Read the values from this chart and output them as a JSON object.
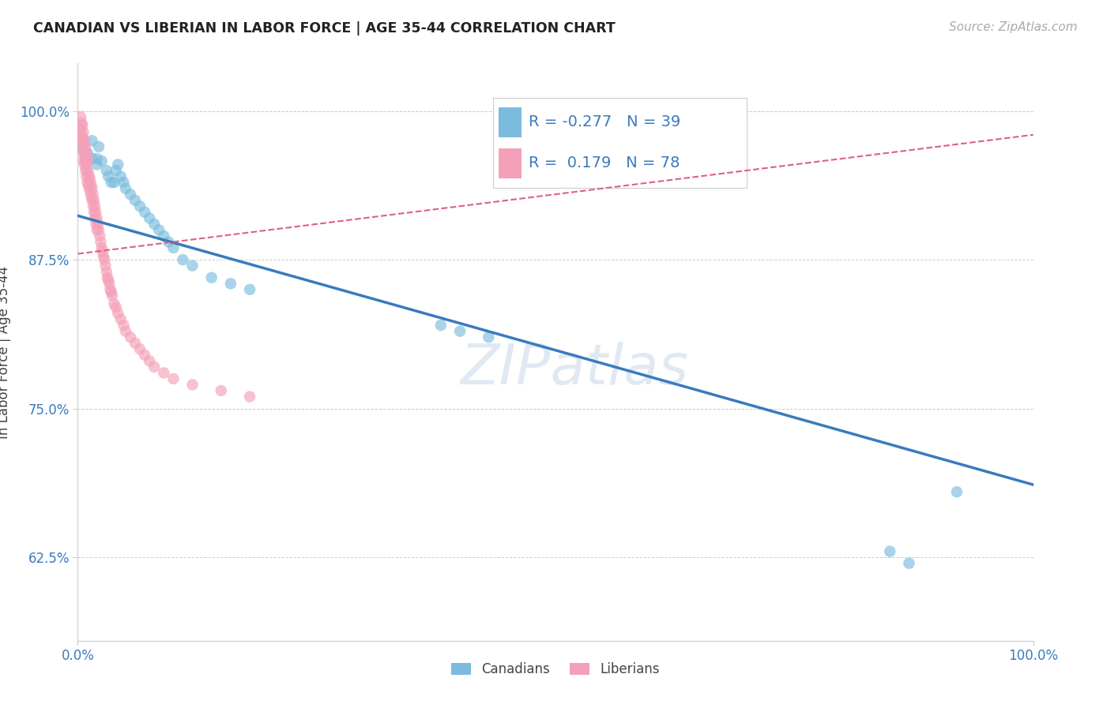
{
  "title": "CANADIAN VS LIBERIAN IN LABOR FORCE | AGE 35-44 CORRELATION CHART",
  "source_text": "Source: ZipAtlas.com",
  "ylabel": "In Labor Force | Age 35-44",
  "xlim": [
    0.0,
    1.0
  ],
  "ylim": [
    0.555,
    1.04
  ],
  "yticks": [
    0.625,
    0.75,
    0.875,
    1.0
  ],
  "ytick_labels": [
    "62.5%",
    "75.0%",
    "87.5%",
    "100.0%"
  ],
  "xticks": [
    0.0,
    1.0
  ],
  "xtick_labels": [
    "0.0%",
    "100.0%"
  ],
  "R_canadian": -0.277,
  "N_canadian": 39,
  "R_liberian": 0.179,
  "N_liberian": 78,
  "canadian_color": "#7bbcde",
  "liberian_color": "#f4a0b8",
  "canadian_line_color": "#3a7abf",
  "liberian_line_color": "#e06080",
  "background_color": "#ffffff",
  "canadians_x": [
    0.005,
    0.008,
    0.01,
    0.015,
    0.015,
    0.02,
    0.02,
    0.022,
    0.025,
    0.03,
    0.032,
    0.035,
    0.038,
    0.04,
    0.042,
    0.045,
    0.048,
    0.05,
    0.055,
    0.06,
    0.065,
    0.07,
    0.075,
    0.08,
    0.085,
    0.09,
    0.095,
    0.1,
    0.11,
    0.12,
    0.14,
    0.16,
    0.18,
    0.38,
    0.4,
    0.43,
    0.85,
    0.87,
    0.92
  ],
  "canadians_y": [
    0.97,
    0.96,
    0.965,
    0.975,
    0.96,
    0.96,
    0.955,
    0.97,
    0.958,
    0.95,
    0.945,
    0.94,
    0.94,
    0.95,
    0.955,
    0.945,
    0.94,
    0.935,
    0.93,
    0.925,
    0.92,
    0.915,
    0.91,
    0.905,
    0.9,
    0.895,
    0.89,
    0.885,
    0.875,
    0.87,
    0.86,
    0.855,
    0.85,
    0.82,
    0.815,
    0.81,
    0.63,
    0.62,
    0.68
  ],
  "liberians_x": [
    0.003,
    0.003,
    0.004,
    0.004,
    0.005,
    0.005,
    0.005,
    0.005,
    0.006,
    0.006,
    0.006,
    0.006,
    0.007,
    0.007,
    0.007,
    0.008,
    0.008,
    0.008,
    0.009,
    0.009,
    0.009,
    0.01,
    0.01,
    0.01,
    0.01,
    0.011,
    0.011,
    0.012,
    0.012,
    0.013,
    0.013,
    0.014,
    0.014,
    0.015,
    0.015,
    0.016,
    0.016,
    0.017,
    0.017,
    0.018,
    0.018,
    0.019,
    0.019,
    0.02,
    0.02,
    0.021,
    0.022,
    0.023,
    0.024,
    0.025,
    0.026,
    0.027,
    0.028,
    0.029,
    0.03,
    0.031,
    0.032,
    0.033,
    0.034,
    0.035,
    0.036,
    0.038,
    0.04,
    0.042,
    0.045,
    0.048,
    0.05,
    0.055,
    0.06,
    0.065,
    0.07,
    0.075,
    0.08,
    0.09,
    0.1,
    0.12,
    0.15,
    0.18
  ],
  "liberians_y": [
    0.995,
    0.985,
    0.99,
    0.98,
    0.988,
    0.978,
    0.975,
    0.965,
    0.982,
    0.972,
    0.968,
    0.958,
    0.975,
    0.965,
    0.955,
    0.97,
    0.96,
    0.95,
    0.965,
    0.955,
    0.945,
    0.96,
    0.95,
    0.94,
    0.958,
    0.948,
    0.938,
    0.945,
    0.935,
    0.942,
    0.932,
    0.938,
    0.928,
    0.935,
    0.925,
    0.93,
    0.92,
    0.925,
    0.915,
    0.92,
    0.91,
    0.915,
    0.905,
    0.91,
    0.9,
    0.905,
    0.9,
    0.895,
    0.89,
    0.885,
    0.882,
    0.878,
    0.875,
    0.87,
    0.865,
    0.86,
    0.858,
    0.855,
    0.85,
    0.848,
    0.845,
    0.838,
    0.835,
    0.83,
    0.825,
    0.82,
    0.815,
    0.81,
    0.805,
    0.8,
    0.795,
    0.79,
    0.785,
    0.78,
    0.775,
    0.77,
    0.765,
    0.76
  ],
  "canadian_trend_x": [
    0.0,
    1.0
  ],
  "canadian_trend_y": [
    0.912,
    0.686
  ],
  "liberian_trend_x": [
    0.0,
    1.0
  ],
  "liberian_trend_y": [
    0.88,
    0.98
  ]
}
